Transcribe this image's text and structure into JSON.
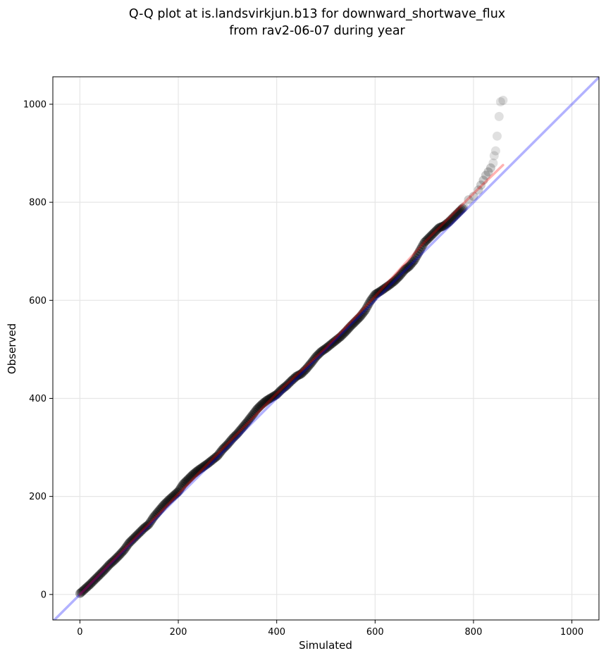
{
  "chart_data": {
    "type": "scatter",
    "title": "Q-Q plot at is.landsvirkjun.b13 for downward_shortwave_flux",
    "subtitle": "from rav2-06-07 during year",
    "xlabel": "Simulated",
    "ylabel": "Observed",
    "xlim": [
      -55,
      1055
    ],
    "ylim": [
      -52,
      1056
    ],
    "xticks": [
      0,
      200,
      400,
      600,
      800,
      1000
    ],
    "yticks": [
      0,
      200,
      400,
      600,
      800,
      1000
    ],
    "grid": true,
    "series": [
      {
        "type": "scatter",
        "color": "#000000",
        "x": [
          0,
          10,
          20,
          30,
          40,
          50,
          60,
          70,
          80,
          90,
          100,
          110,
          120,
          130,
          140,
          150,
          160,
          170,
          180,
          190,
          200,
          210,
          220,
          230,
          240,
          250,
          260,
          270,
          280,
          290,
          300,
          310,
          320,
          330,
          340,
          350,
          360,
          370,
          380,
          390,
          400,
          410,
          420,
          430,
          440,
          450,
          460,
          470,
          480,
          490,
          500,
          510,
          520,
          530,
          540,
          550,
          560,
          570,
          580,
          590,
          600,
          610,
          620,
          630,
          640,
          650,
          660,
          670,
          680,
          690,
          700,
          710,
          720,
          730,
          740,
          750,
          760,
          770,
          780,
          790,
          800,
          810,
          815,
          820,
          825,
          830,
          835,
          840,
          842,
          845,
          848,
          852,
          855,
          860
        ],
        "y": [
          2,
          11,
          20,
          30,
          40,
          50,
          61,
          70,
          80,
          91,
          105,
          115,
          125,
          135,
          143,
          158,
          170,
          182,
          192,
          201,
          210,
          225,
          235,
          245,
          253,
          260,
          267,
          275,
          283,
          296,
          306,
          318,
          328,
          340,
          352,
          365,
          378,
          388,
          396,
          402,
          408,
          418,
          426,
          436,
          445,
          450,
          460,
          472,
          485,
          495,
          502,
          510,
          518,
          526,
          536,
          547,
          557,
          567,
          580,
          598,
          612,
          618,
          625,
          632,
          640,
          650,
          662,
          670,
          682,
          700,
          718,
          728,
          738,
          748,
          752,
          760,
          770,
          780,
          790,
          805,
          812,
          825,
          835,
          845,
          855,
          862,
          870,
          880,
          895,
          905,
          935,
          975,
          1005,
          1008
        ]
      },
      {
        "type": "line",
        "color": "#0000ff",
        "x": [
          -55,
          1055
        ],
        "y": [
          -55,
          1055
        ]
      },
      {
        "type": "line",
        "color": "#ff0000",
        "x": [
          0,
          400,
          500,
          600,
          700,
          800,
          860
        ],
        "y": [
          0,
          410,
          503,
          608,
          718,
          818,
          876
        ]
      }
    ]
  }
}
